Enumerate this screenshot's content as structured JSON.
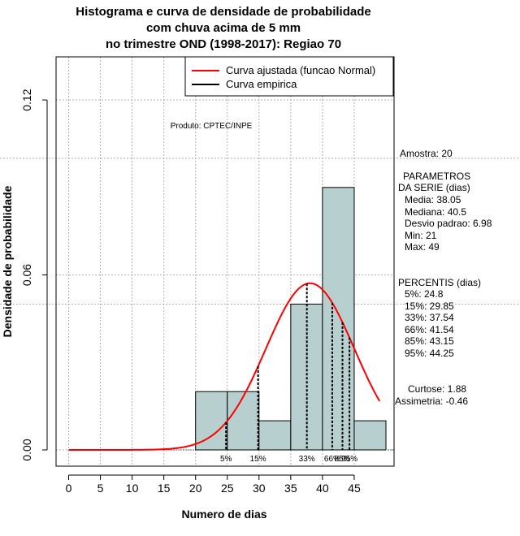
{
  "title_lines": [
    "Histograma e curva de densidade de probabilidade",
    "com chuva acima de 5 mm",
    "no trimestre OND (1998-2017): Regiao 70"
  ],
  "product_label": "Produto: CPTEC/INPE",
  "legend": {
    "fitted_label": "Curva ajustada (funcao Normal)",
    "empirical_label": "Curva empirica",
    "fitted_color": "#ff0000",
    "empirical_color": "#000000"
  },
  "stats": {
    "amostra": "Amostra: 20",
    "param_title_1": "PARAMETROS",
    "param_title_2": "DA SERIE (dias)",
    "media": "Media: 38.05",
    "mediana": "Mediana: 40.5",
    "desvio": "Desvio padrao: 6.98",
    "min": "Min: 21",
    "max": "Max: 49",
    "perc_title": "PERCENTIS (dias)",
    "p5": "5%: 24.8",
    "p15": "15%: 29.85",
    "p33": "33%: 37.54",
    "p66": "66%: 41.54",
    "p85": "85%: 43.15",
    "p95": "95%: 44.25",
    "curtose": "Curtose: 1.88",
    "assimetria": "Assimetria: -0.46"
  },
  "chart_data": {
    "type": "bar",
    "xlabel": "Numero de dias",
    "ylabel": "Densidade de probabilidade",
    "xlim": [
      -2,
      51
    ],
    "ylim": [
      0,
      0.13
    ],
    "x_ticks": [
      "0",
      "5",
      "10",
      "15",
      "20",
      "25",
      "30",
      "35",
      "40",
      "45"
    ],
    "y_ticks": [
      "0.00",
      "0.06",
      "0.12"
    ],
    "bins": [
      {
        "from": 20,
        "to": 25,
        "density": 0.02
      },
      {
        "from": 25,
        "to": 30,
        "density": 0.02
      },
      {
        "from": 30,
        "to": 35,
        "density": 0.01
      },
      {
        "from": 35,
        "to": 40,
        "density": 0.05
      },
      {
        "from": 40,
        "to": 45,
        "density": 0.09
      },
      {
        "from": 45,
        "to": 50,
        "density": 0.01
      }
    ],
    "normal_fit": {
      "mean": 38.05,
      "sd": 6.98,
      "x_from": 0,
      "x_to": 49
    },
    "percentiles": [
      {
        "label": "5%",
        "value": 24.8
      },
      {
        "label": "15%",
        "value": 29.85
      },
      {
        "label": "33%",
        "value": 37.54
      },
      {
        "label": "66%",
        "value": 41.54
      },
      {
        "label": "85%",
        "value": 43.15
      },
      {
        "label": "95%",
        "value": 44.25
      }
    ],
    "reference_lines": [
      0.1,
      0.05
    ],
    "grid": true,
    "legend_position": "top-right",
    "bar_color": "#b8cfcf"
  }
}
